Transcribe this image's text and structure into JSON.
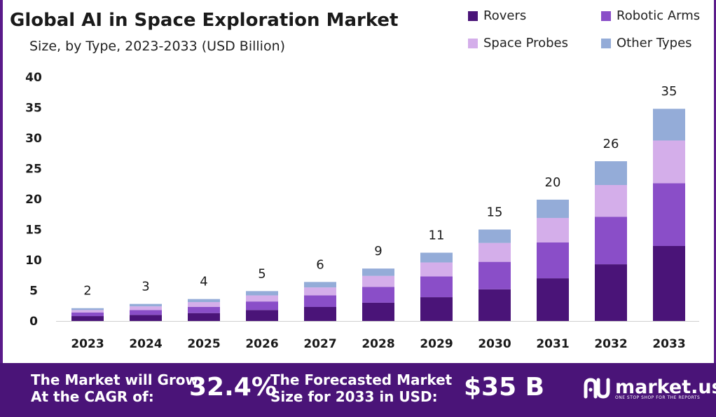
{
  "header": {
    "title": "Global AI in Space Exploration Market",
    "subtitle": "Size, by Type, 2023-2033 (USD Billion)"
  },
  "colors": {
    "rovers": "#4a1478",
    "robotic_arms": "#8a4ec8",
    "space_probes": "#d4aeea",
    "other_types": "#94acd8",
    "footer_bg": "#4a1478"
  },
  "chart_data": {
    "type": "bar",
    "stacked": true,
    "categories": [
      "2023",
      "2024",
      "2025",
      "2026",
      "2027",
      "2028",
      "2029",
      "2030",
      "2031",
      "2032",
      "2033"
    ],
    "series": [
      {
        "name": "Rovers",
        "values": [
          0.8,
          1.0,
          1.3,
          1.8,
          2.3,
          3.0,
          3.9,
          5.2,
          7.0,
          9.3,
          12.3
        ]
      },
      {
        "name": "Robotic Arms",
        "values": [
          0.6,
          0.8,
          1.0,
          1.4,
          1.9,
          2.6,
          3.4,
          4.5,
          5.9,
          7.8,
          10.3
        ]
      },
      {
        "name": "Space Probes",
        "values": [
          0.4,
          0.6,
          0.8,
          1.0,
          1.3,
          1.8,
          2.3,
          3.1,
          4.0,
          5.2,
          7.0
        ]
      },
      {
        "name": "Other Types",
        "values": [
          0.3,
          0.4,
          0.5,
          0.7,
          0.9,
          1.2,
          1.6,
          2.2,
          3.0,
          3.9,
          5.2
        ]
      }
    ],
    "totals": [
      "2",
      "3",
      "4",
      "5",
      "6",
      "9",
      "11",
      "15",
      "20",
      "26",
      "35"
    ],
    "ylim": [
      0,
      40
    ],
    "yticks": [
      "0",
      "5",
      "10",
      "15",
      "20",
      "25",
      "30",
      "35",
      "40"
    ],
    "grid": false,
    "legend": "top-right"
  },
  "footer": {
    "cagr_line1": "The Market will Grow",
    "cagr_line2": "At the CAGR of:",
    "cagr_value": "32.4%",
    "forecast_line1": "The Forecasted Market",
    "forecast_line2": "Size for 2033 in USD:",
    "forecast_value": "$35 B",
    "logo_name": "market.us",
    "logo_tagline": "ONE STOP SHOP FOR THE REPORTS"
  }
}
